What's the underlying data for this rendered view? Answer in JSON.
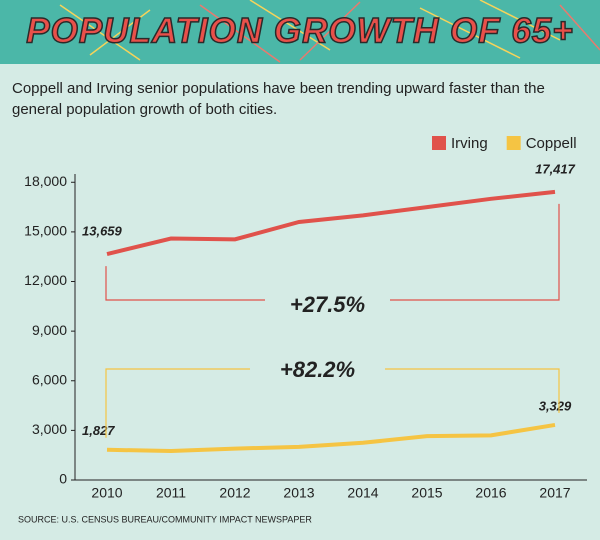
{
  "chart_data": {
    "type": "line",
    "title": "POPULATION GROWTH OF 65+",
    "subtitle": "Coppell and Irving senior populations have been trending upward faster than the general population growth of both cities.",
    "source": "SOURCE: U.S. CENSUS BUREAU/COMMUNITY IMPACT NEWSPAPER",
    "categories": [
      "2010",
      "2011",
      "2012",
      "2013",
      "2014",
      "2015",
      "2016",
      "2017"
    ],
    "series": [
      {
        "name": "Irving",
        "color": "#e0524b",
        "values": [
          13659,
          14600,
          14550,
          15600,
          16000,
          16500,
          17000,
          17417
        ],
        "value_labels": [
          "13,659",
          null,
          null,
          null,
          null,
          null,
          null,
          "17,417"
        ]
      },
      {
        "name": "Coppell",
        "color": "#f5c443",
        "values": [
          1827,
          1750,
          1900,
          2000,
          2250,
          2650,
          2700,
          3329
        ],
        "value_labels": [
          "1,827",
          null,
          null,
          null,
          null,
          null,
          null,
          "3,329"
        ]
      }
    ],
    "annotations": [
      "+27.5%",
      "+82.2%"
    ],
    "ylim": [
      0,
      18500
    ],
    "yticks": [
      0,
      {
        "value": 3000,
        "label": "3,000"
      },
      {
        "value": 6000,
        "label": "6,000"
      },
      {
        "value": 9000,
        "label": "9,000"
      },
      {
        "value": 12000,
        "label": "12,000"
      },
      {
        "value": 15000,
        "label": "15,000"
      },
      {
        "value": 18000,
        "label": "18,000"
      }
    ],
    "legend": "top-right"
  }
}
